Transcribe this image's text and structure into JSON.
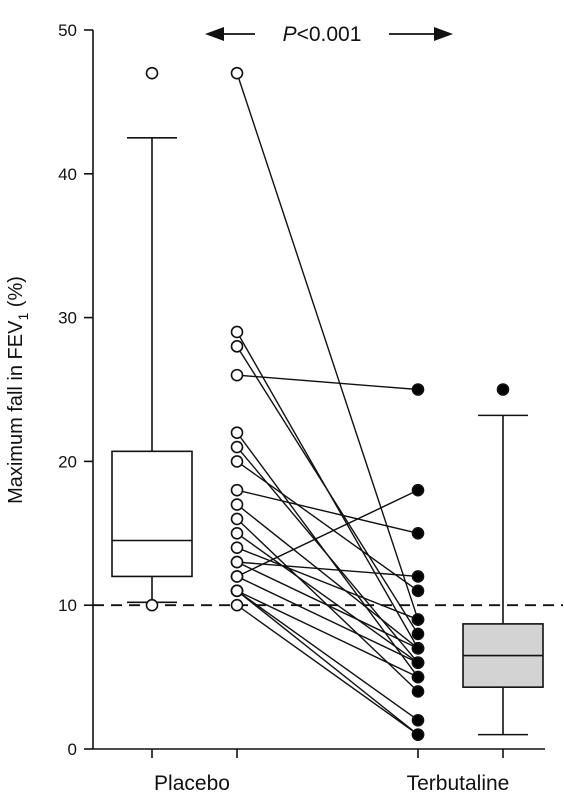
{
  "chart_data": {
    "type": "box-and-paired-scatter",
    "categories": [
      "Placebo",
      "Terbutaline"
    ],
    "ylabel": {
      "prefix": "Maximum fall in FEV",
      "subscript": "1",
      "suffix": " (%)"
    },
    "ylim": [
      0,
      50
    ],
    "yticks": [
      0,
      10,
      20,
      30,
      40,
      50
    ],
    "reference_line": {
      "y": 10,
      "style": "dashed"
    },
    "annotation": {
      "italic": "P",
      "rest": "<0.001"
    },
    "boxes": [
      {
        "name": "Placebo",
        "whisker_low": 10.2,
        "q1": 12,
        "median": 14.5,
        "q3": 20.7,
        "whisker_high": 42.5,
        "outliers": [
          10,
          47
        ],
        "fill": "#ffffff"
      },
      {
        "name": "Terbutaline",
        "whisker_low": 1,
        "q1": 4.3,
        "median": 6.5,
        "q3": 8.7,
        "whisker_high": 23.2,
        "outliers": [
          25
        ],
        "fill": "#d3d3d3"
      }
    ],
    "pairs": [
      {
        "placebo": 47,
        "terbutaline": 9
      },
      {
        "placebo": 29,
        "terbutaline": 7
      },
      {
        "placebo": 28,
        "terbutaline": 8
      },
      {
        "placebo": 26,
        "terbutaline": 25
      },
      {
        "placebo": 22,
        "terbutaline": 5
      },
      {
        "placebo": 21,
        "terbutaline": 6
      },
      {
        "placebo": 20,
        "terbutaline": 11
      },
      {
        "placebo": 18,
        "terbutaline": 15
      },
      {
        "placebo": 17,
        "terbutaline": 7
      },
      {
        "placebo": 16,
        "terbutaline": 4
      },
      {
        "placebo": 15,
        "terbutaline": 6
      },
      {
        "placebo": 14,
        "terbutaline": 9
      },
      {
        "placebo": 13,
        "terbutaline": 12
      },
      {
        "placebo": 13,
        "terbutaline": 7
      },
      {
        "placebo": 12,
        "terbutaline": 18
      },
      {
        "placebo": 12,
        "terbutaline": 6
      },
      {
        "placebo": 11,
        "terbutaline": 5
      },
      {
        "placebo": 11,
        "terbutaline": 2
      },
      {
        "placebo": 11,
        "terbutaline": 1
      },
      {
        "placebo": 10,
        "terbutaline": 1
      }
    ],
    "colors": {
      "placebo_marker": "#ffffff",
      "terbutaline_marker": "#000000",
      "line": "#111111"
    }
  }
}
